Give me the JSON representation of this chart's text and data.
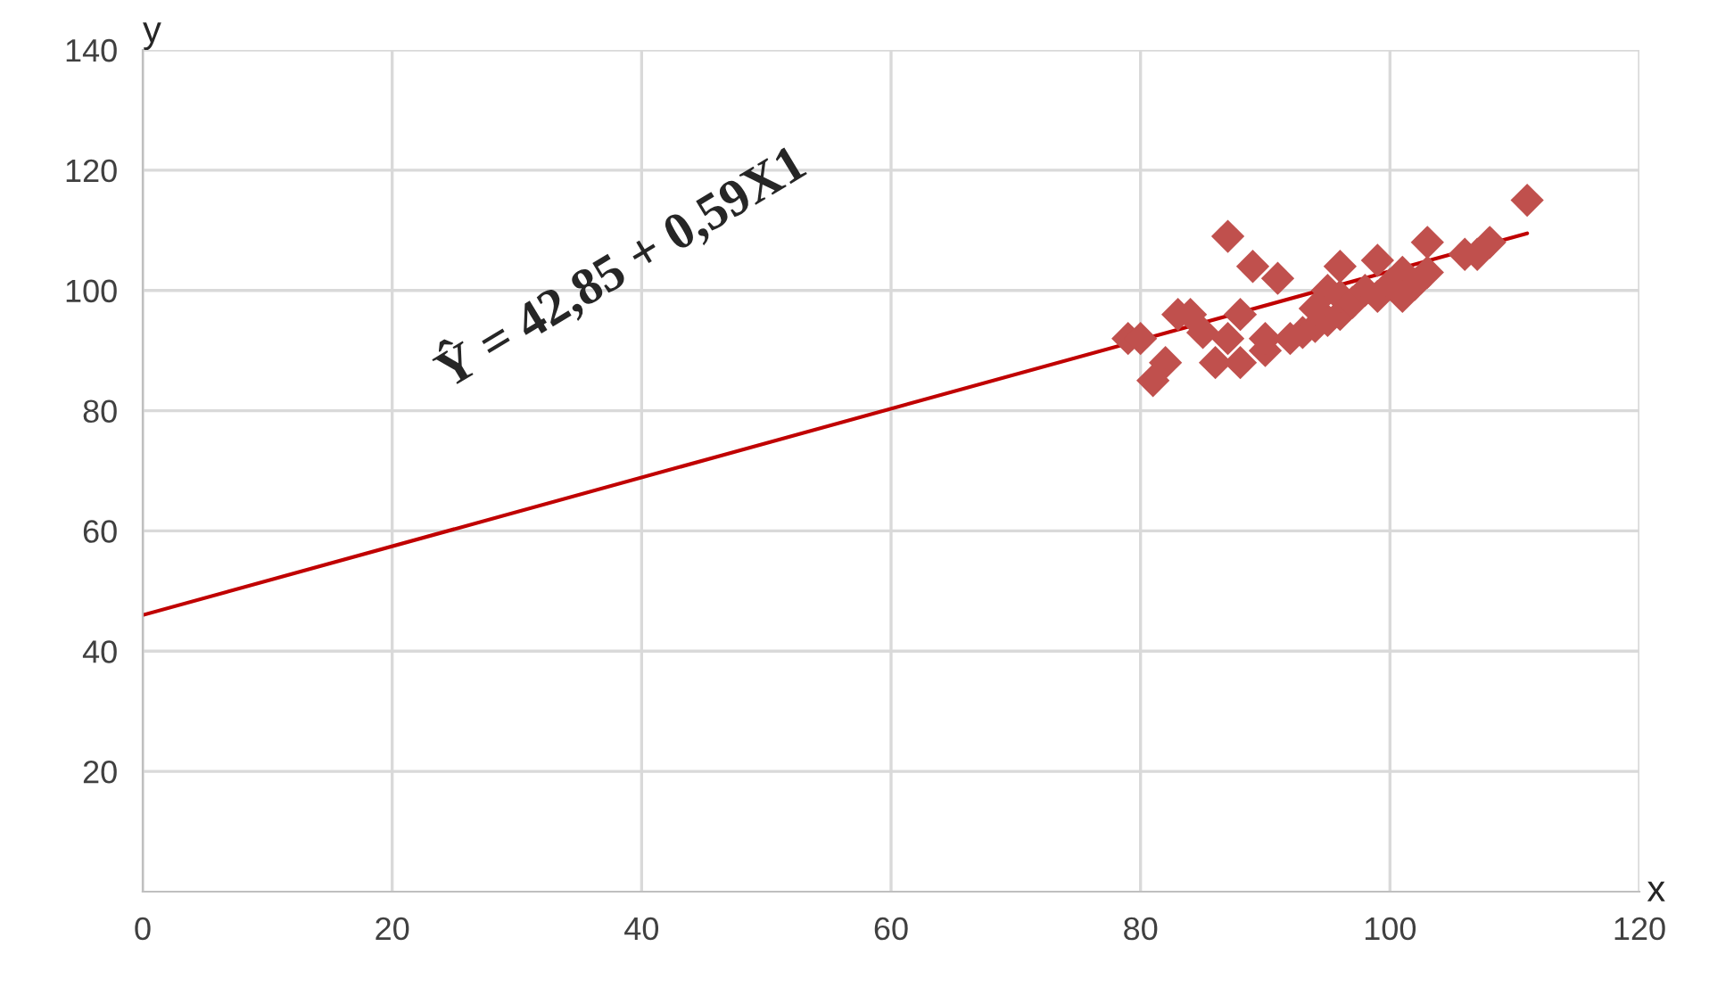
{
  "chart_data": {
    "type": "scatter",
    "xlabel": "x",
    "ylabel": "y",
    "xlim": [
      0,
      120
    ],
    "ylim": [
      0,
      140
    ],
    "xticks": [
      0,
      20,
      40,
      60,
      80,
      100,
      120
    ],
    "yticks": [
      20,
      40,
      60,
      80,
      100,
      120,
      140
    ],
    "grid": true,
    "legend": false,
    "marker": "diamond",
    "annotations": [
      "Ŷ = 42,85 + 0,59X1"
    ],
    "series": [
      {
        "color": "#c0504d",
        "x": [
          79,
          80,
          81,
          82,
          83,
          84,
          85,
          86,
          87,
          87,
          88,
          88,
          89,
          90,
          90,
          91,
          92,
          93,
          94,
          94,
          95,
          95,
          96,
          96,
          96,
          97,
          98,
          99,
          99,
          100,
          101,
          101,
          102,
          103,
          103,
          106,
          107,
          108,
          111
        ],
        "values": [
          92,
          92,
          85,
          88,
          96,
          96,
          93,
          88,
          92,
          109,
          88,
          96,
          104,
          90,
          92,
          102,
          92,
          93,
          94,
          97,
          95,
          100,
          96,
          99,
          104,
          98,
          100,
          99,
          105,
          101,
          103,
          99,
          101,
          103,
          108,
          106,
          106,
          108,
          115
        ]
      },
      {
        "type": "line",
        "color": "#c00000",
        "marker": "none",
        "line_style": "solid",
        "x": [
          0,
          111
        ],
        "values": [
          46,
          109.5
        ]
      }
    ]
  }
}
